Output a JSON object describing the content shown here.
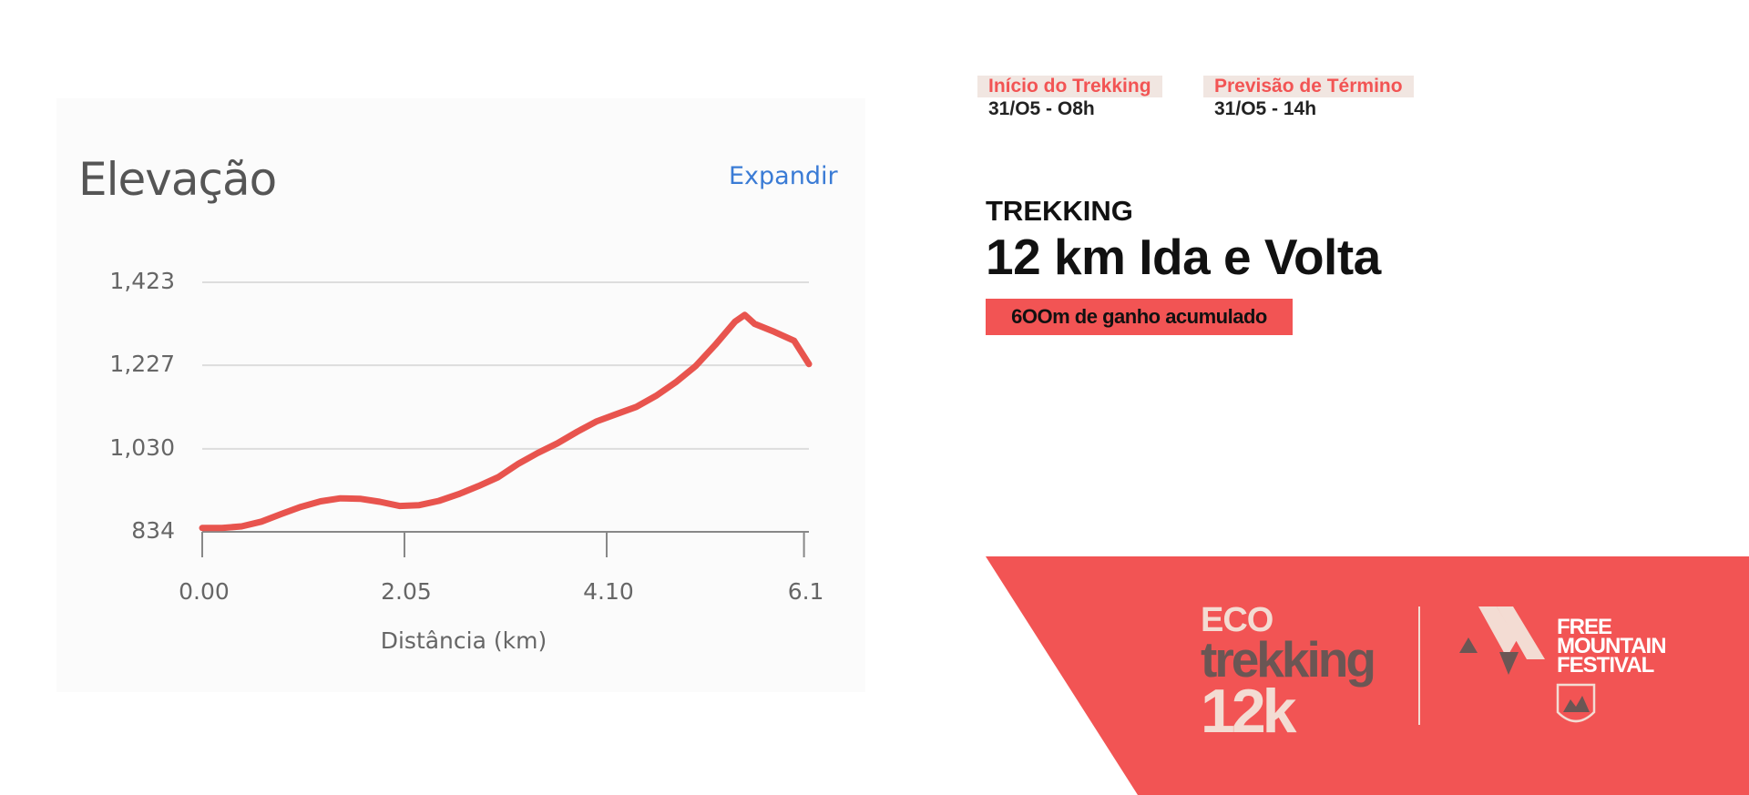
{
  "elevation": {
    "title": "Elevação",
    "expand_label": "Expandir",
    "colors": {
      "line": "#e8544e",
      "grid": "#dddddd",
      "axis": "#888888"
    }
  },
  "chart_data": {
    "type": "line",
    "title": "Elevação",
    "xlabel": "Distância (km)",
    "ylabel": "",
    "x_ticks": [
      "0.00",
      "2.05",
      "4.10",
      "6.1"
    ],
    "y_ticks": [
      "834",
      "1,030",
      "1,227",
      "1,423"
    ],
    "xlim": [
      0,
      6.15
    ],
    "ylim": [
      834,
      1423
    ],
    "grid": true,
    "series": [
      {
        "x": [
          0,
          0.2,
          0.4,
          0.6,
          0.8,
          1.0,
          1.2,
          1.4,
          1.6,
          1.8,
          2.0,
          2.2,
          2.4,
          2.6,
          2.8,
          3.0,
          3.2,
          3.4,
          3.6,
          3.8,
          4.0,
          4.2,
          4.4,
          4.6,
          4.8,
          5.0,
          5.2,
          5.4,
          5.5,
          5.6,
          5.8,
          6.0,
          6.15
        ],
        "y": [
          843,
          843,
          847,
          858,
          876,
          893,
          906,
          913,
          912,
          905,
          895,
          897,
          907,
          923,
          942,
          963,
          994,
          1020,
          1043,
          1070,
          1095,
          1112,
          1129,
          1155,
          1187,
          1225,
          1275,
          1330,
          1346,
          1325,
          1306,
          1285,
          1230
        ]
      }
    ]
  },
  "info": {
    "start_label": "Início do Trekking",
    "start_value": "31/O5 - O8h",
    "end_label": "Previsão de Término",
    "end_value": "31/O5 - 14h",
    "kicker": "TREKKING",
    "title": "12 km Ida e Volta",
    "gain": "6OOm de ganho acumulado",
    "colors": {
      "accent": "#f25454",
      "label_bg": "#f1e6e1"
    }
  },
  "brand": {
    "eco_line1": "ECO",
    "eco_line2": "trekking",
    "eco_line3": "12k",
    "festival_line1": "FREE",
    "festival_line2": "MOUNTAIN",
    "festival_line3": "FESTIVAL",
    "colors": {
      "banner": "#f25454",
      "cream": "#f3dcd3",
      "dark": "#6b5654"
    }
  }
}
